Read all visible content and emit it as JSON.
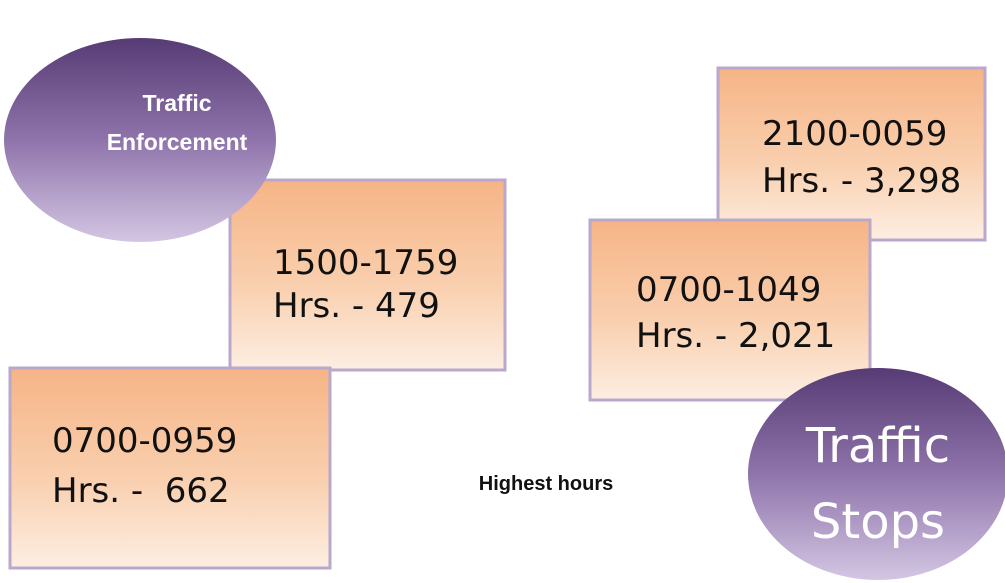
{
  "enforcement": {
    "label": [
      "Traffic",
      "Enforcement"
    ]
  },
  "stops": {
    "label": [
      "Traffic",
      "Stops"
    ]
  },
  "caption": "Highest hours",
  "boxes": [
    {
      "time": "1500-1759",
      "hours": "Hrs. - 479"
    },
    {
      "time": "0700-0959",
      "hours": "Hrs. -  662"
    },
    {
      "time": "2100-0059",
      "hours": "Hrs. - 3,298"
    },
    {
      "time": "0700-1049",
      "hours": "Hrs. - 2,021"
    }
  ]
}
